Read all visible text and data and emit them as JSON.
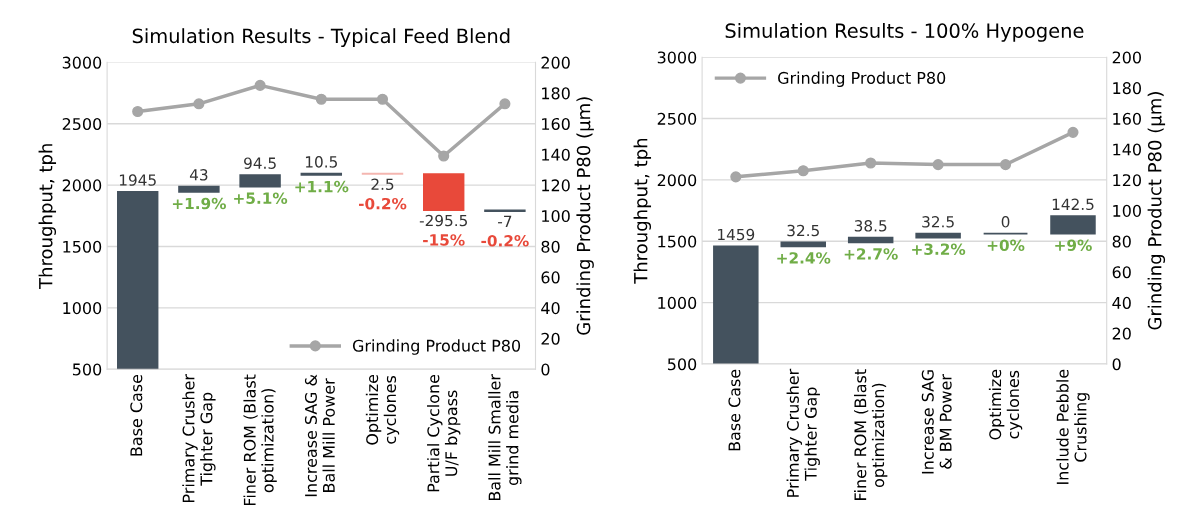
{
  "chart_data": [
    {
      "type": "bar",
      "title": "Simulation Results - Typical Feed Blend",
      "ylabel": "Throughput, tph",
      "y2label": "Grinding Product P80 (µm)",
      "categories": [
        "Base Case",
        "Primary Crusher Tighter Gap",
        "Finer ROM (Blast optimization)",
        "Increase SAG & Ball Mill Power",
        "Optimize cyclones",
        "Partial Cyclone U/F bypass",
        "Ball Mill Smaller grind media"
      ],
      "series": [
        {
          "base": [
            500,
            1945,
            1988,
            2082.5,
            2093,
            2090.5,
            1795
          ],
          "values": [
            1445,
            43,
            94.5,
            10.5,
            -2.5,
            -295.5,
            -7
          ],
          "colors": [
            "#44525e",
            "#44525e",
            "#44525e",
            "#44525e",
            "#f4b6b0",
            "#e8493a",
            "#44525e"
          ],
          "value_labels": [
            "1945",
            "43",
            "94.5",
            "10.5",
            "2.5",
            "-295.5",
            "-7"
          ]
        },
        {
          "type": "line",
          "name": "Grinding Product P80",
          "axis": "y2",
          "color": "#a6a6a6",
          "marker": "circle",
          "values": [
            168,
            173,
            185,
            176,
            176,
            139,
            173
          ]
        }
      ],
      "ylim": [
        500,
        3000
      ],
      "yticks": [
        500,
        1000,
        1500,
        2000,
        2500,
        3000
      ],
      "y2lim": [
        0,
        200
      ],
      "y2ticks": [
        0,
        20,
        40,
        60,
        80,
        100,
        120,
        140,
        160,
        180,
        200
      ],
      "grid": "y",
      "legend": "bottom right",
      "annotations": [
        {
          "text": "+1.9%",
          "x": "Primary Crusher Tighter Gap",
          "y": 1945
        },
        {
          "text": "+5.1%",
          "x": "Finer ROM (Blast optimization)",
          "y": 1988
        },
        {
          "text": "+1.1%",
          "x": "Increase SAG & Ball Mill Power",
          "y": 2082.5
        },
        {
          "text": "-0.2%",
          "x": "Optimize cyclones",
          "y": 2090.5
        },
        {
          "text": "-15%",
          "x": "Partial Cyclone U/F bypass",
          "y": 1795
        },
        {
          "text": "-0.2%",
          "x": "Ball Mill Smaller grind media",
          "y": 1788
        }
      ]
    },
    {
      "type": "bar",
      "title": "Simulation Results - 100% Hypogene",
      "ylabel": "Throughput, tph",
      "y2label": "Grinding Product P80 (µm)",
      "categories": [
        "Base Case",
        "Primary Crusher Tighter Gap",
        "Finer ROM (Blast optimization)",
        "Increase SAG & BM Power",
        "Optimize cyclones",
        "Include Pebble Crushing"
      ],
      "series": [
        {
          "base": [
            500,
            1459,
            1491.5,
            1530,
            1562.5,
            1562.5
          ],
          "values": [
            959,
            32.5,
            38.5,
            32.5,
            0,
            142.5
          ],
          "colors": [
            "#44525e",
            "#44525e",
            "#44525e",
            "#44525e",
            "#44525e",
            "#44525e"
          ],
          "value_labels": [
            "1459",
            "32.5",
            "38.5",
            "32.5",
            "0",
            "142.5"
          ]
        },
        {
          "type": "line",
          "name": "Grinding Product P80",
          "axis": "y2",
          "color": "#a6a6a6",
          "marker": "circle",
          "values": [
            122,
            126,
            131,
            130,
            130,
            151
          ]
        }
      ],
      "ylim": [
        500,
        3000
      ],
      "yticks": [
        500,
        1000,
        1500,
        2000,
        2500,
        3000
      ],
      "y2lim": [
        0,
        200
      ],
      "y2ticks": [
        0,
        20,
        40,
        60,
        80,
        100,
        120,
        140,
        160,
        180,
        200
      ],
      "grid": "y",
      "legend": "top left",
      "annotations": [
        {
          "text": "+2.4%",
          "x": "Primary Crusher Tighter Gap",
          "y": 1459
        },
        {
          "text": "+2.7%",
          "x": "Finer ROM (Blast optimization)",
          "y": 1491.5
        },
        {
          "text": "+3.2%",
          "x": "Increase SAG & BM Power",
          "y": 1530
        },
        {
          "text": "+0%",
          "x": "Optimize cyclones",
          "y": 1562.5
        },
        {
          "text": "+9%",
          "x": "Include Pebble Crushing",
          "y": 1562.5
        }
      ]
    }
  ]
}
